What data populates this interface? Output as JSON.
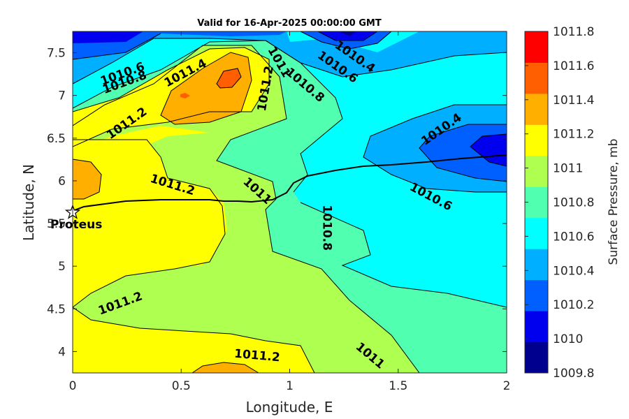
{
  "chart_data": {
    "type": "contour",
    "title": "Valid for 16-Apr-2025 00:00:00 GMT",
    "xlabel": "Longitude, E",
    "ylabel": "Latitude, N",
    "xlim": [
      0,
      2
    ],
    "ylim": [
      3.75,
      7.75
    ],
    "xticks": [
      "0",
      "0.5",
      "1",
      "1.5",
      "2"
    ],
    "yticks": [
      "4",
      "4.5",
      "5",
      "5.5",
      "6",
      "6.5",
      "7",
      "7.5"
    ],
    "colorbar": {
      "label": "Surface Pressure, mb",
      "ticks": [
        "1009.8",
        "1010",
        "1010.2",
        "1010.4",
        "1010.6",
        "1010.8",
        "1011",
        "1011.2",
        "1011.4",
        "1011.6",
        "1011.8"
      ],
      "colors": [
        "#00008f",
        "#0000ef",
        "#005fff",
        "#00afff",
        "#00ffff",
        "#50ffaf",
        "#afff50",
        "#ffff00",
        "#ffaf00",
        "#ff5f00",
        "#ff0000"
      ]
    },
    "contour_labels": [
      {
        "text": "1010.6",
        "x": 0.23,
        "y": 7.25,
        "rotation": -20
      },
      {
        "text": "1010.8",
        "x": 0.24,
        "y": 7.15,
        "rotation": -20
      },
      {
        "text": "1011.4",
        "x": 0.52,
        "y": 7.26,
        "rotation": -28
      },
      {
        "text": "1011.2",
        "x": 0.89,
        "y": 7.08,
        "rotation": -80
      },
      {
        "text": "1011",
        "x": 0.95,
        "y": 7.39,
        "rotation": 60
      },
      {
        "text": "1010.4",
        "x": 1.3,
        "y": 7.45,
        "rotation": 35
      },
      {
        "text": "1010.6",
        "x": 1.22,
        "y": 7.33,
        "rotation": 35
      },
      {
        "text": "1010.8",
        "x": 1.07,
        "y": 7.12,
        "rotation": 40
      },
      {
        "text": "1011.2",
        "x": 0.25,
        "y": 6.67,
        "rotation": -35
      },
      {
        "text": "1010.4",
        "x": 1.7,
        "y": 6.6,
        "rotation": -35
      },
      {
        "text": "1011.2",
        "x": 0.46,
        "y": 5.95,
        "rotation": 17
      },
      {
        "text": "1011",
        "x": 0.85,
        "y": 5.88,
        "rotation": 42
      },
      {
        "text": "1010.6",
        "x": 1.65,
        "y": 5.81,
        "rotation": 28
      },
      {
        "text": "1010.8",
        "x": 1.17,
        "y": 5.45,
        "rotation": 90
      },
      {
        "text": "1011.2",
        "x": 0.22,
        "y": 4.56,
        "rotation": -20
      },
      {
        "text": "1011.2",
        "x": 0.85,
        "y": 3.95,
        "rotation": 5
      },
      {
        "text": "1011",
        "x": 1.37,
        "y": 3.95,
        "rotation": 40
      }
    ],
    "station": {
      "name": "Proteus",
      "lon": 0.0,
      "lat": 5.63
    }
  }
}
